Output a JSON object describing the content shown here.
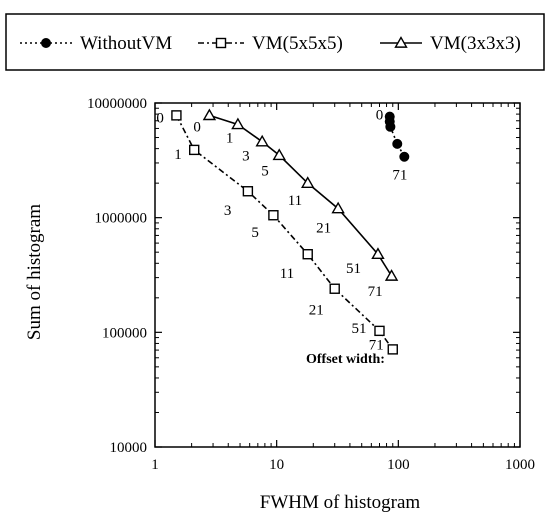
{
  "chart_data": {
    "type": "line",
    "title": "",
    "xlabel": "FWHM of histogram",
    "ylabel": "Sum of histogram",
    "x_scale": "log",
    "y_scale": "log",
    "xlim": [
      1,
      1000
    ],
    "ylim": [
      10000,
      10000000
    ],
    "x_ticks": [
      "1",
      "10",
      "100",
      "1000"
    ],
    "y_ticks": [
      "10000",
      "100000",
      "1000000",
      "10000000"
    ],
    "grid": false,
    "legend_position": "top",
    "annotation": "Offset width:",
    "series": [
      {
        "name": "WithoutVM",
        "style": "dotted",
        "marker": "filled-circle",
        "color": "#000000",
        "x": [
          85,
          85,
          86,
          98,
          112
        ],
        "y": [
          7600000,
          6900000,
          6200000,
          4400000,
          3400000
        ],
        "point_labels": [
          "0",
          "",
          "",
          "",
          "71"
        ]
      },
      {
        "name": "VM(5x5x5)",
        "style": "dash-dot",
        "marker": "open-square",
        "color": "#000000",
        "x": [
          1.5,
          2.1,
          5.8,
          9.4,
          18,
          30,
          70,
          90
        ],
        "y": [
          7800000,
          3900000,
          1700000,
          1050000,
          480000,
          240000,
          103000,
          71000
        ],
        "point_labels": [
          "0",
          "1",
          "3",
          "5",
          "11",
          "21",
          "51",
          "71"
        ]
      },
      {
        "name": "VM(3x3x3)",
        "style": "solid",
        "marker": "open-triangle",
        "color": "#000000",
        "x": [
          2.8,
          4.8,
          7.6,
          10.5,
          18,
          32,
          68,
          88
        ],
        "y": [
          7800000,
          6500000,
          4600000,
          3500000,
          2000000,
          1200000,
          480000,
          310000
        ],
        "point_labels": [
          "0",
          "1",
          "3",
          "5",
          "11",
          "21",
          "51",
          "71"
        ]
      }
    ]
  }
}
